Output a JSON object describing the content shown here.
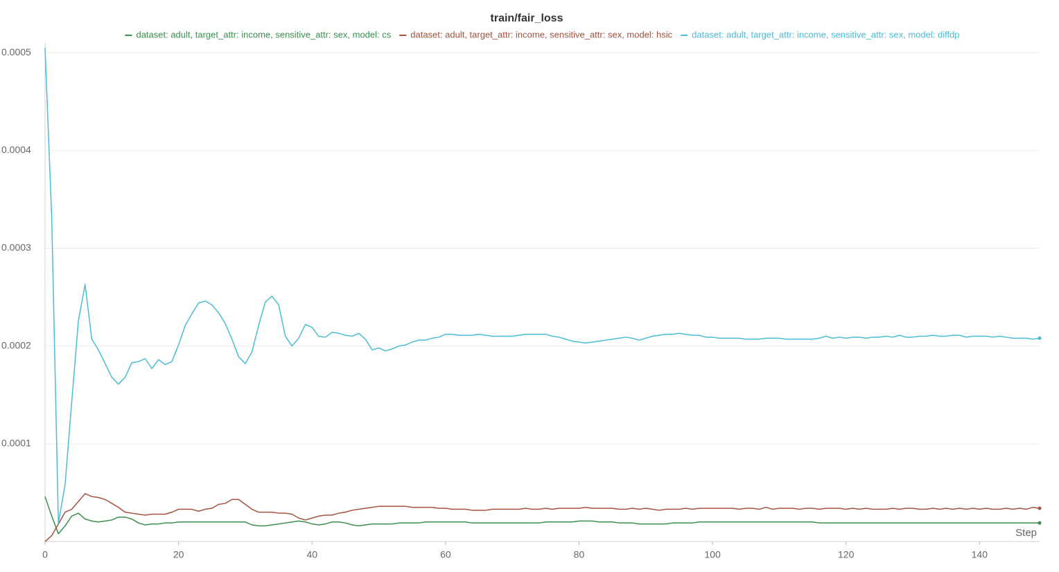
{
  "chart_data": {
    "type": "line",
    "title": "train/fair_loss",
    "x_label": "Step",
    "legend": "top",
    "grid": true,
    "xlim": [
      0,
      149
    ],
    "ylim": [
      0,
      0.00051
    ],
    "xticks": [
      0,
      20,
      40,
      60,
      80,
      100,
      120,
      140
    ],
    "yticks": [
      0.0001,
      0.0002,
      0.0003,
      0.0004,
      0.0005
    ],
    "x": [
      0,
      1,
      2,
      3,
      4,
      5,
      6,
      7,
      8,
      9,
      10,
      11,
      12,
      13,
      14,
      15,
      16,
      17,
      18,
      19,
      20,
      21,
      22,
      23,
      24,
      25,
      26,
      27,
      28,
      29,
      30,
      31,
      32,
      33,
      34,
      35,
      36,
      37,
      38,
      39,
      40,
      41,
      42,
      43,
      44,
      45,
      46,
      47,
      48,
      49,
      50,
      51,
      52,
      53,
      54,
      55,
      56,
      57,
      58,
      59,
      60,
      61,
      62,
      63,
      64,
      65,
      66,
      67,
      68,
      69,
      70,
      71,
      72,
      73,
      74,
      75,
      76,
      77,
      78,
      79,
      80,
      81,
      82,
      83,
      84,
      85,
      86,
      87,
      88,
      89,
      90,
      91,
      92,
      93,
      94,
      95,
      96,
      97,
      98,
      99,
      100,
      101,
      102,
      103,
      104,
      105,
      106,
      107,
      108,
      109,
      110,
      111,
      112,
      113,
      114,
      115,
      116,
      117,
      118,
      119,
      120,
      121,
      122,
      123,
      124,
      125,
      126,
      127,
      128,
      129,
      130,
      131,
      132,
      133,
      134,
      135,
      136,
      137,
      138,
      139,
      140,
      141,
      142,
      143,
      144,
      145,
      146,
      147,
      148,
      149
    ],
    "series": [
      {
        "name": "dataset: adult, target_attr: income, sensitive_attr: sex, model: cs",
        "color": "#3a8f4c",
        "values": [
          4.6e-05,
          2.6e-05,
          8e-06,
          1.6e-05,
          2.6e-05,
          2.9e-05,
          2.3e-05,
          2.1e-05,
          2e-05,
          2.1e-05,
          2.2e-05,
          2.5e-05,
          2.5e-05,
          2.3e-05,
          1.9e-05,
          1.7e-05,
          1.8e-05,
          1.8e-05,
          1.9e-05,
          1.9e-05,
          2e-05,
          2e-05,
          2e-05,
          2e-05,
          2e-05,
          2e-05,
          2e-05,
          2e-05,
          2e-05,
          2e-05,
          2e-05,
          1.7e-05,
          1.6e-05,
          1.6e-05,
          1.7e-05,
          1.8e-05,
          1.9e-05,
          2e-05,
          2.1e-05,
          2e-05,
          1.8e-05,
          1.7e-05,
          1.8e-05,
          2e-05,
          2e-05,
          1.9e-05,
          1.7e-05,
          1.6e-05,
          1.7e-05,
          1.8e-05,
          1.8e-05,
          1.8e-05,
          1.8e-05,
          1.9e-05,
          1.9e-05,
          1.9e-05,
          1.9e-05,
          2e-05,
          2e-05,
          2e-05,
          2e-05,
          2e-05,
          2e-05,
          2e-05,
          1.9e-05,
          1.9e-05,
          1.9e-05,
          1.9e-05,
          1.9e-05,
          1.9e-05,
          1.9e-05,
          1.9e-05,
          1.9e-05,
          1.9e-05,
          1.9e-05,
          2e-05,
          2e-05,
          2e-05,
          2e-05,
          2e-05,
          2.1e-05,
          2.1e-05,
          2.1e-05,
          2e-05,
          2e-05,
          2e-05,
          1.9e-05,
          1.9e-05,
          1.9e-05,
          1.8e-05,
          1.8e-05,
          1.8e-05,
          1.8e-05,
          1.8e-05,
          1.9e-05,
          1.9e-05,
          1.9e-05,
          1.9e-05,
          2e-05,
          2e-05,
          2e-05,
          2e-05,
          2e-05,
          2e-05,
          2e-05,
          2e-05,
          2e-05,
          2e-05,
          2e-05,
          2e-05,
          2e-05,
          2e-05,
          2e-05,
          2e-05,
          2e-05,
          2e-05,
          1.9e-05,
          1.9e-05,
          1.9e-05,
          1.9e-05,
          1.9e-05,
          1.9e-05,
          1.9e-05,
          1.9e-05,
          1.9e-05,
          1.9e-05,
          1.9e-05,
          1.9e-05,
          1.9e-05,
          1.9e-05,
          1.9e-05,
          1.9e-05,
          1.9e-05,
          1.9e-05,
          1.9e-05,
          1.9e-05,
          1.9e-05,
          1.9e-05,
          1.9e-05,
          1.9e-05,
          1.9e-05,
          1.9e-05,
          1.9e-05,
          1.9e-05,
          1.9e-05,
          1.9e-05,
          1.9e-05,
          1.9e-05,
          1.9e-05,
          1.9e-05
        ]
      },
      {
        "name": "dataset: adult, target_attr: income, sensitive_attr: sex, model: hsic",
        "color": "#a5513e",
        "values": [
          0,
          6e-06,
          1.8e-05,
          3e-05,
          3.3e-05,
          4.1e-05,
          4.9e-05,
          4.6e-05,
          4.5e-05,
          4.3e-05,
          3.9e-05,
          3.5e-05,
          3e-05,
          2.9e-05,
          2.8e-05,
          2.7e-05,
          2.8e-05,
          2.8e-05,
          2.8e-05,
          3e-05,
          3.3e-05,
          3.3e-05,
          3.3e-05,
          3.1e-05,
          3.3e-05,
          3.4e-05,
          3.8e-05,
          3.9e-05,
          4.3e-05,
          4.3e-05,
          3.8e-05,
          3.3e-05,
          3e-05,
          3e-05,
          3e-05,
          2.9e-05,
          2.9e-05,
          2.8e-05,
          2.4e-05,
          2.2e-05,
          2.4e-05,
          2.6e-05,
          2.7e-05,
          2.7e-05,
          2.9e-05,
          3e-05,
          3.2e-05,
          3.3e-05,
          3.4e-05,
          3.5e-05,
          3.6e-05,
          3.6e-05,
          3.6e-05,
          3.6e-05,
          3.6e-05,
          3.5e-05,
          3.5e-05,
          3.5e-05,
          3.5e-05,
          3.4e-05,
          3.4e-05,
          3.3e-05,
          3.3e-05,
          3.3e-05,
          3.2e-05,
          3.2e-05,
          3.2e-05,
          3.3e-05,
          3.3e-05,
          3.3e-05,
          3.3e-05,
          3.3e-05,
          3.4e-05,
          3.3e-05,
          3.3e-05,
          3.4e-05,
          3.3e-05,
          3.4e-05,
          3.4e-05,
          3.4e-05,
          3.4e-05,
          3.5e-05,
          3.4e-05,
          3.4e-05,
          3.4e-05,
          3.4e-05,
          3.3e-05,
          3.3e-05,
          3.4e-05,
          3.3e-05,
          3.4e-05,
          3.3e-05,
          3.2e-05,
          3.3e-05,
          3.3e-05,
          3.3e-05,
          3.4e-05,
          3.3e-05,
          3.4e-05,
          3.4e-05,
          3.4e-05,
          3.4e-05,
          3.4e-05,
          3.4e-05,
          3.3e-05,
          3.4e-05,
          3.4e-05,
          3.3e-05,
          3.5e-05,
          3.3e-05,
          3.4e-05,
          3.4e-05,
          3.4e-05,
          3.3e-05,
          3.4e-05,
          3.4e-05,
          3.3e-05,
          3.4e-05,
          3.4e-05,
          3.4e-05,
          3.3e-05,
          3.4e-05,
          3.3e-05,
          3.4e-05,
          3.3e-05,
          3.3e-05,
          3.3e-05,
          3.4e-05,
          3.3e-05,
          3.4e-05,
          3.4e-05,
          3.3e-05,
          3.3e-05,
          3.4e-05,
          3.3e-05,
          3.4e-05,
          3.3e-05,
          3.4e-05,
          3.3e-05,
          3.4e-05,
          3.3e-05,
          3.4e-05,
          3.3e-05,
          3.3e-05,
          3.4e-05,
          3.3e-05,
          3.4e-05,
          3.3e-05,
          3.5e-05,
          3.4e-05
        ]
      },
      {
        "name": "dataset: adult, target_attr: income, sensitive_attr: sex, model: diffdp",
        "color": "#4bbcd8",
        "values": [
          0.000505,
          0.000331,
          1.9e-05,
          5.8e-05,
          0.000143,
          0.000226,
          0.000263,
          0.000207,
          0.000196,
          0.000182,
          0.000168,
          0.000161,
          0.000168,
          0.000183,
          0.000184,
          0.000187,
          0.000177,
          0.000186,
          0.000181,
          0.000184,
          0.000201,
          0.000221,
          0.000233,
          0.000244,
          0.000246,
          0.000242,
          0.000234,
          0.000223,
          0.000207,
          0.000189,
          0.000182,
          0.000194,
          0.000221,
          0.000245,
          0.000251,
          0.000242,
          0.00021,
          0.0002,
          0.000208,
          0.000222,
          0.000219,
          0.00021,
          0.000209,
          0.000214,
          0.000213,
          0.000211,
          0.00021,
          0.000213,
          0.000207,
          0.000196,
          0.000198,
          0.000195,
          0.000197,
          0.0002,
          0.000201,
          0.000204,
          0.000206,
          0.000206,
          0.000208,
          0.000209,
          0.000212,
          0.000212,
          0.000211,
          0.000211,
          0.000211,
          0.000212,
          0.000211,
          0.00021,
          0.00021,
          0.00021,
          0.00021,
          0.000211,
          0.000212,
          0.000212,
          0.000212,
          0.000212,
          0.00021,
          0.000209,
          0.000207,
          0.000205,
          0.000204,
          0.000203,
          0.000204,
          0.000205,
          0.000206,
          0.000207,
          0.000208,
          0.000209,
          0.000208,
          0.000206,
          0.000208,
          0.00021,
          0.000211,
          0.000212,
          0.000212,
          0.000213,
          0.000212,
          0.000211,
          0.000211,
          0.000209,
          0.000209,
          0.000208,
          0.000208,
          0.000208,
          0.000208,
          0.000207,
          0.000207,
          0.000207,
          0.000208,
          0.000208,
          0.000208,
          0.000207,
          0.000207,
          0.000207,
          0.000207,
          0.000207,
          0.000208,
          0.00021,
          0.000208,
          0.000209,
          0.000208,
          0.000209,
          0.000209,
          0.000208,
          0.000209,
          0.000209,
          0.00021,
          0.000209,
          0.000211,
          0.000209,
          0.000209,
          0.00021,
          0.00021,
          0.000211,
          0.00021,
          0.00021,
          0.000211,
          0.000211,
          0.000209,
          0.00021,
          0.00021,
          0.00021,
          0.000209,
          0.00021,
          0.000209,
          0.000208,
          0.000208,
          0.000208,
          0.000207,
          0.000208
        ]
      }
    ]
  }
}
